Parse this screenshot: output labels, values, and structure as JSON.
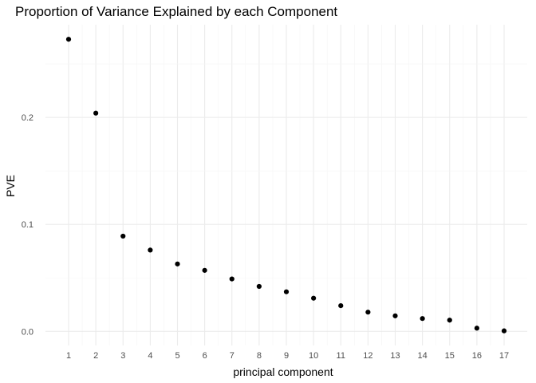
{
  "chart_data": {
    "type": "scatter",
    "title": "Proportion of Variance Explained by each Component",
    "xlabel": "principal component",
    "ylabel": "PVE",
    "x": [
      1,
      2,
      3,
      4,
      5,
      6,
      7,
      8,
      9,
      10,
      11,
      12,
      13,
      14,
      15,
      16,
      17
    ],
    "y": [
      0.273,
      0.204,
      0.089,
      0.076,
      0.063,
      0.057,
      0.049,
      0.042,
      0.037,
      0.031,
      0.024,
      0.018,
      0.0145,
      0.012,
      0.0105,
      0.003,
      0.0005
    ],
    "xticks": [
      "1",
      "2",
      "3",
      "4",
      "5",
      "6",
      "7",
      "8",
      "9",
      "10",
      "11",
      "12",
      "13",
      "14",
      "15",
      "16",
      "17"
    ],
    "yticks": [
      "0.0",
      "0.1",
      "0.2"
    ],
    "xlim": [
      0.15,
      17.85
    ],
    "ylim": [
      -0.0132,
      0.2866
    ],
    "grid": true,
    "legend": "none",
    "colors": {
      "point": "#000000",
      "grid_major": "#ebebeb",
      "grid_minor": "#f5f5f5",
      "tick_text": "#4d4d4d",
      "text": "#000000"
    }
  }
}
